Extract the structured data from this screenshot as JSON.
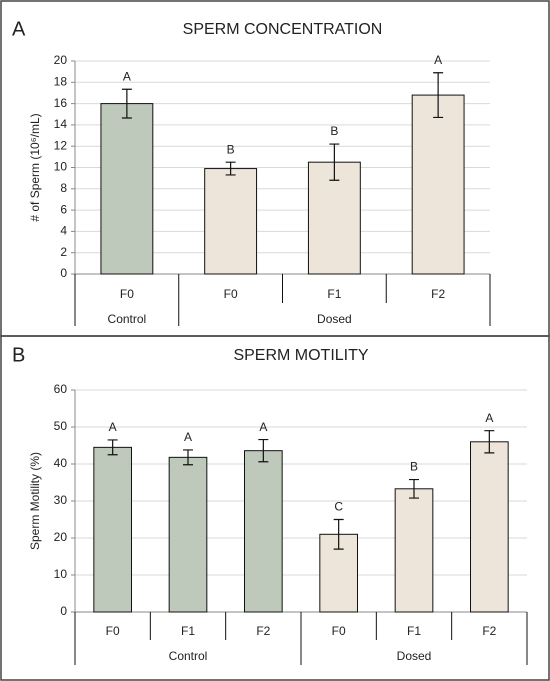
{
  "chart_data": [
    {
      "type": "bar",
      "panel": "A",
      "title": "SPERM CONCENTRATION",
      "y_label": "# of Sperm (10⁶/mL)",
      "categories": [
        "F0",
        "F0",
        "F1",
        "F2"
      ],
      "groups": [
        {
          "label": "Control",
          "size": 1,
          "color": "#bfc9bb"
        },
        {
          "label": "Dosed",
          "size": 3,
          "color": "#ede4da"
        }
      ],
      "values": [
        16.0,
        9.9,
        10.5,
        16.8
      ],
      "errors": [
        1.35,
        0.6,
        1.7,
        2.1
      ],
      "annotations": [
        "A",
        "B",
        "B",
        "A"
      ],
      "ylim": [
        0,
        20
      ],
      "yticks": [
        0,
        2,
        4,
        6,
        8,
        10,
        12,
        14,
        16,
        18,
        20
      ],
      "grid": true
    },
    {
      "type": "bar",
      "panel": "B",
      "title": "SPERM MOTILITY",
      "y_label": "Sperm Motility (%)",
      "categories": [
        "F0",
        "F1",
        "F2",
        "F0",
        "F1",
        "F2"
      ],
      "groups": [
        {
          "label": "Control",
          "size": 3,
          "color": "#bfc9bb"
        },
        {
          "label": "Dosed",
          "size": 3,
          "color": "#ede4da"
        }
      ],
      "values": [
        44.5,
        41.8,
        43.6,
        21.0,
        33.3,
        46.0
      ],
      "errors": [
        2.0,
        2.0,
        3.0,
        4.0,
        2.5,
        3.0
      ],
      "annotations": [
        "A",
        "A",
        "A",
        "C",
        "B",
        "A"
      ],
      "ylim": [
        0,
        60
      ],
      "yticks": [
        0,
        10,
        20,
        30,
        40,
        50,
        60
      ],
      "grid": true
    }
  ]
}
